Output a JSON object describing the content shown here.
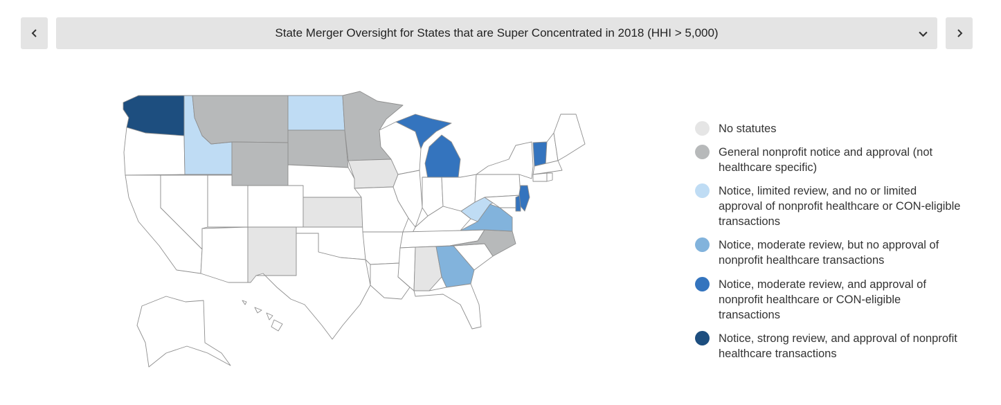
{
  "header": {
    "title": "State Merger Oversight for States that are Super Concentrated in 2018 (HHI > 5,000)",
    "prev_icon": "chevron-left-icon",
    "next_icon": "chevron-right-icon",
    "dropdown_icon": "chevron-down-icon"
  },
  "colors": {
    "none": "#e5e5e5",
    "general": "#b7b9ba",
    "limited": "#bfdcf4",
    "moderate": "#82b3dc",
    "moderate_approval": "#3474be",
    "strong": "#1d4e7f",
    "outline": "#ffffff",
    "stroke": "#8e8e8e"
  },
  "legend": [
    {
      "label": "No statutes",
      "color": "#e5e5e5"
    },
    {
      "label": "General nonprofit notice and approval (not healthcare specific)",
      "color": "#b7b9ba"
    },
    {
      "label": "Notice, limited review, and no or limited approval of nonprofit healthcare or CON-eligible transactions",
      "color": "#bfdcf4"
    },
    {
      "label": "Notice, moderate review, but no approval of nonprofit healthcare transactions",
      "color": "#82b3dc"
    },
    {
      "label": "Notice, moderate review, and approval of nonprofit healthcare or CON-eligible transactions",
      "color": "#3474be"
    },
    {
      "label": "Notice, strong review, and approval of nonprofit healthcare transactions",
      "color": "#1d4e7f"
    }
  ],
  "states": {
    "no_statutes": [
      "IA",
      "KS",
      "NM",
      "AL"
    ],
    "general": [
      "MT",
      "WY",
      "SD",
      "MN",
      "NC"
    ],
    "limited": [
      "ID",
      "ND",
      "WV"
    ],
    "moderate": [
      "VA",
      "GA"
    ],
    "moderate_approval": [
      "MI",
      "VT",
      "NJ",
      "DE"
    ],
    "strong": [
      "WA"
    ]
  }
}
